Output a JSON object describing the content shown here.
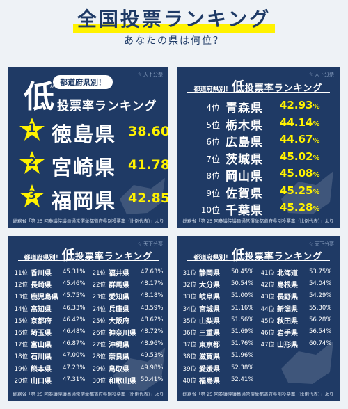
{
  "header": {
    "title": "全国投票ランキング",
    "subtitle": "あなたの県は何位？"
  },
  "brand": {
    "logo_text": "☆ 天下分票"
  },
  "colors": {
    "panel_bg": "#1f3a65",
    "accent_yellow": "#fff200",
    "highlight": "#fff200",
    "title_text": "#1e3a66"
  },
  "panel1": {
    "tag": "都道府県別！",
    "big_char": "低",
    "heading": "投票率ランキング",
    "items": [
      {
        "rank": "1",
        "pref": "徳島県",
        "pct": "38.60",
        "unit": "%"
      },
      {
        "rank": "2",
        "pref": "宮崎県",
        "pct": "41.78",
        "unit": "%"
      },
      {
        "rank": "3",
        "pref": "福岡県",
        "pct": "42.85",
        "unit": "%"
      }
    ],
    "footnote": "総務省「第 25 回参議院議員通常選挙都道府県別投票率（比例代表）」より"
  },
  "panel2": {
    "pre": "都道府県別！",
    "low": "低",
    "rest": "投票率ランキング",
    "items": [
      {
        "rank": "4位",
        "pref": "青森県",
        "pct": "42.93",
        "unit": "%"
      },
      {
        "rank": "5位",
        "pref": "栃木県",
        "pct": "44.14",
        "unit": "%"
      },
      {
        "rank": "6位",
        "pref": "広島県",
        "pct": "44.67",
        "unit": "%"
      },
      {
        "rank": "7位",
        "pref": "茨城県",
        "pct": "45.02",
        "unit": "%"
      },
      {
        "rank": "8位",
        "pref": "岡山県",
        "pct": "45.08",
        "unit": "%"
      },
      {
        "rank": "9位",
        "pref": "佐賀県",
        "pct": "45.25",
        "unit": "%"
      },
      {
        "rank": "10位",
        "pref": "千葉県",
        "pct": "45.28",
        "unit": "%"
      }
    ],
    "footnote": "総務省「第 25 回参議院議員通常選挙都道府県別投票率（比例代表）」より"
  },
  "panel3": {
    "pre": "都道府県別！",
    "low": "低",
    "rest": "投票率ランキング",
    "left": [
      {
        "rank": "11位",
        "pref": "香川県",
        "pct": "45.31%"
      },
      {
        "rank": "12位",
        "pref": "長崎県",
        "pct": "45.46%"
      },
      {
        "rank": "13位",
        "pref": "鹿児島県",
        "pct": "45.75%"
      },
      {
        "rank": "14位",
        "pref": "高知県",
        "pct": "46.33%"
      },
      {
        "rank": "15位",
        "pref": "京都府",
        "pct": "46.42%"
      },
      {
        "rank": "16位",
        "pref": "埼玉県",
        "pct": "46.48%"
      },
      {
        "rank": "17位",
        "pref": "富山県",
        "pct": "46.87%"
      },
      {
        "rank": "18位",
        "pref": "石川県",
        "pct": "47.00%"
      },
      {
        "rank": "19位",
        "pref": "熊本県",
        "pct": "47.23%"
      },
      {
        "rank": "20位",
        "pref": "山口県",
        "pct": "47.31%"
      }
    ],
    "right": [
      {
        "rank": "21位",
        "pref": "福井県",
        "pct": "47.63%"
      },
      {
        "rank": "22位",
        "pref": "群馬県",
        "pct": "48.17%"
      },
      {
        "rank": "23位",
        "pref": "愛知県",
        "pct": "48.18%"
      },
      {
        "rank": "24位",
        "pref": "兵庫県",
        "pct": "48.59%"
      },
      {
        "rank": "25位",
        "pref": "大阪府",
        "pct": "48.62%"
      },
      {
        "rank": "26位",
        "pref": "神奈川県",
        "pct": "48.72%"
      },
      {
        "rank": "27位",
        "pref": "沖縄県",
        "pct": "48.96%"
      },
      {
        "rank": "28位",
        "pref": "奈良県",
        "pct": "49.53%"
      },
      {
        "rank": "29位",
        "pref": "鳥取県",
        "pct": "49.98%"
      },
      {
        "rank": "30位",
        "pref": "和歌山県",
        "pct": "50.41%"
      }
    ],
    "footnote": "総務省「第 25 回参議院議員通常選挙都道府県別投票率（比例代表）」より"
  },
  "panel4": {
    "pre": "都道府県別！",
    "low": "低",
    "rest": "投票率ランキング",
    "left": [
      {
        "rank": "31位",
        "pref": "静岡県",
        "pct": "50.45%"
      },
      {
        "rank": "32位",
        "pref": "大分県",
        "pct": "50.54%"
      },
      {
        "rank": "33位",
        "pref": "岐阜県",
        "pct": "51.00%"
      },
      {
        "rank": "34位",
        "pref": "宮城県",
        "pct": "51.16%"
      },
      {
        "rank": "35位",
        "pref": "山梨県",
        "pct": "51.56%"
      },
      {
        "rank": "36位",
        "pref": "三重県",
        "pct": "51.69%"
      },
      {
        "rank": "37位",
        "pref": "東京都",
        "pct": "51.76%"
      },
      {
        "rank": "38位",
        "pref": "滋賀県",
        "pct": "51.96%"
      },
      {
        "rank": "39位",
        "pref": "愛媛県",
        "pct": "52.38%"
      },
      {
        "rank": "40位",
        "pref": "福島県",
        "pct": "52.41%"
      }
    ],
    "right": [
      {
        "rank": "41位",
        "pref": "北海道",
        "pct": "53.75%"
      },
      {
        "rank": "42位",
        "pref": "島根県",
        "pct": "54.04%"
      },
      {
        "rank": "43位",
        "pref": "長野県",
        "pct": "54.29%"
      },
      {
        "rank": "44位",
        "pref": "新潟県",
        "pct": "55.30%"
      },
      {
        "rank": "45位",
        "pref": "秋田県",
        "pct": "56.28%"
      },
      {
        "rank": "46位",
        "pref": "岩手県",
        "pct": "56.54%"
      },
      {
        "rank": "47位",
        "pref": "山形県",
        "pct": "60.74%"
      }
    ],
    "footnote": "総務省「第 25 回参議院議員通常選挙都道府県別投票率（比例代表）」より"
  }
}
